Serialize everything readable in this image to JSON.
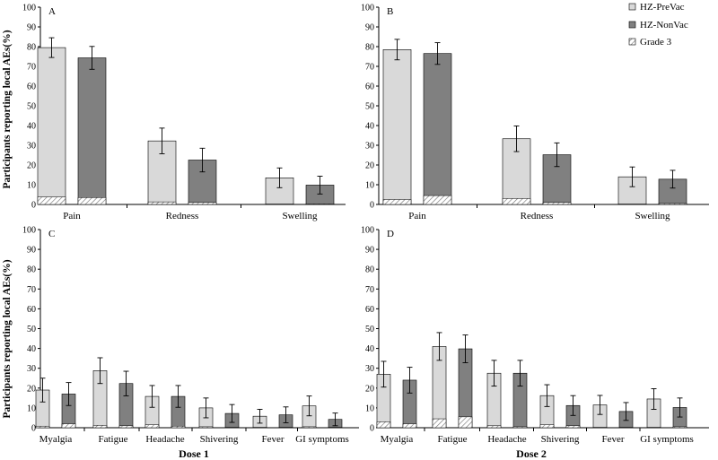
{
  "figure": {
    "ylabel_top": "Participants reporting local AEs(%)",
    "ylabel_bottom": "Participants reporting local AEs(%)",
    "dose1_label": "Dose 1",
    "dose2_label": "Dose 2"
  },
  "legend": {
    "items": [
      {
        "label": "HZ-PreVac",
        "color": "#d9d9d9"
      },
      {
        "label": "HZ-NonVac",
        "color": "#808080"
      },
      {
        "label": "Grade 3",
        "color": "#ffffff",
        "pattern": "hatch"
      }
    ]
  },
  "colors": {
    "prevac": "#d9d9d9",
    "nonvac": "#808080",
    "hatch": "#777777",
    "axis": "#000000"
  },
  "chart_data": [
    {
      "panel": "A",
      "type": "bar",
      "categories": [
        "Pain",
        "Redness",
        "Swelling"
      ],
      "series": [
        {
          "name": "HZ-PreVac",
          "values": [
            79.5,
            32.2,
            13.5
          ],
          "error": [
            5.0,
            6.5,
            5.0
          ],
          "grade3": [
            3.8,
            1.3,
            0.2
          ]
        },
        {
          "name": "HZ-NonVac",
          "values": [
            74.3,
            22.5,
            9.8
          ],
          "error": [
            5.8,
            6.0,
            4.5
          ],
          "grade3": [
            3.5,
            1.0,
            0.3
          ]
        }
      ],
      "ylim": [
        0,
        100
      ],
      "yticks": [
        0,
        10,
        20,
        30,
        40,
        50,
        60,
        70,
        80,
        90,
        100
      ]
    },
    {
      "panel": "B",
      "type": "bar",
      "categories": [
        "Pain",
        "Redness",
        "Swelling"
      ],
      "series": [
        {
          "name": "HZ-PreVac",
          "values": [
            78.5,
            33.3,
            14.0
          ],
          "error": [
            5.2,
            6.5,
            5.0
          ],
          "grade3": [
            2.5,
            3.0,
            0.2
          ]
        },
        {
          "name": "HZ-NonVac",
          "values": [
            76.5,
            25.2,
            12.8
          ],
          "error": [
            5.5,
            6.0,
            4.5
          ],
          "grade3": [
            4.5,
            1.0,
            0.5
          ]
        }
      ],
      "ylim": [
        0,
        100
      ],
      "yticks": [
        0,
        10,
        20,
        30,
        40,
        50,
        60,
        70,
        80,
        90,
        100
      ]
    },
    {
      "panel": "C",
      "type": "bar",
      "categories": [
        "Myalgia",
        "Fatigue",
        "Headache",
        "Shivering",
        "Fever",
        "GI symptoms"
      ],
      "series": [
        {
          "name": "HZ-PreVac",
          "values": [
            19.0,
            28.8,
            15.8,
            10.0,
            5.8,
            11.0
          ],
          "error": [
            6.0,
            6.5,
            5.5,
            5.0,
            3.5,
            5.0
          ],
          "grade3": [
            0.8,
            1.2,
            1.5,
            0.5,
            0.2,
            0.5
          ]
        },
        {
          "name": "HZ-NonVac",
          "values": [
            17.0,
            22.3,
            15.8,
            7.2,
            6.5,
            4.2
          ],
          "error": [
            5.8,
            6.2,
            5.5,
            4.5,
            4.0,
            3.2
          ],
          "grade3": [
            2.0,
            1.0,
            0.8,
            0.2,
            0.2,
            0.2
          ]
        }
      ],
      "ylim": [
        0,
        100
      ],
      "yticks": [
        0,
        10,
        20,
        30,
        40,
        50,
        60,
        70,
        80,
        90,
        100
      ]
    },
    {
      "panel": "D",
      "type": "bar",
      "categories": [
        "Myalgia",
        "Fatigue",
        "Headache",
        "Shivering",
        "Fever",
        "GI symptoms"
      ],
      "series": [
        {
          "name": "HZ-PreVac",
          "values": [
            27.0,
            41.0,
            27.5,
            16.2,
            11.5,
            14.5
          ],
          "error": [
            6.5,
            7.0,
            6.5,
            5.5,
            4.8,
            5.2
          ],
          "grade3": [
            3.0,
            4.5,
            1.0,
            1.5,
            0.2,
            0.2
          ]
        },
        {
          "name": "HZ-NonVac",
          "values": [
            24.0,
            39.8,
            27.5,
            11.2,
            8.2,
            10.2
          ],
          "error": [
            6.5,
            7.0,
            6.5,
            5.0,
            4.5,
            4.8
          ],
          "grade3": [
            2.0,
            5.5,
            0.5,
            1.0,
            0.2,
            0.5
          ]
        }
      ],
      "ylim": [
        0,
        100
      ],
      "yticks": [
        0,
        10,
        20,
        30,
        40,
        50,
        60,
        70,
        80,
        90,
        100
      ]
    }
  ]
}
